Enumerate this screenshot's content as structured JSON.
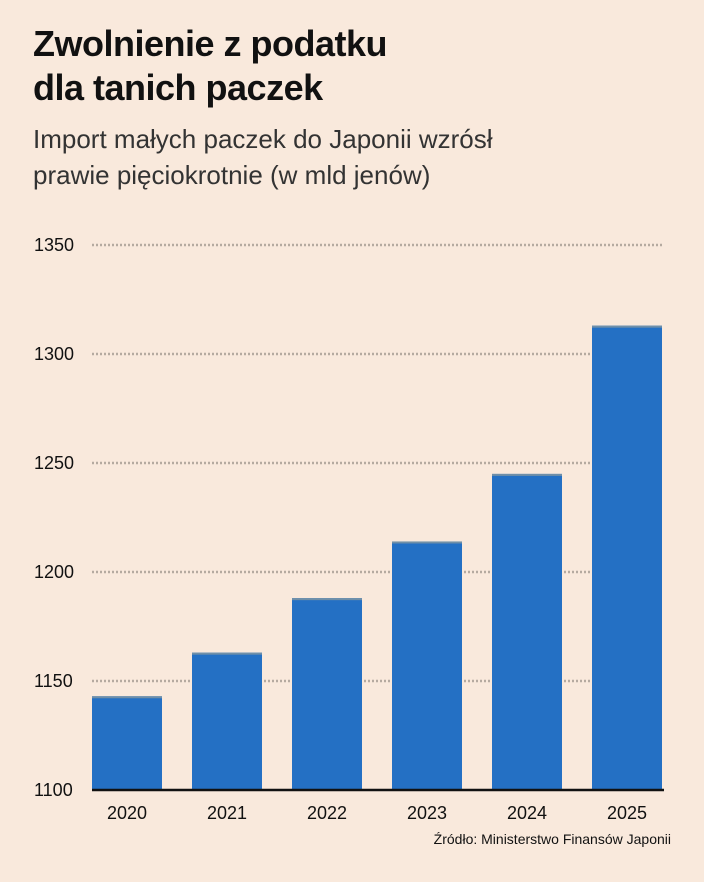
{
  "header": {
    "title_line1": "Zwolnienie z podatku",
    "title_line2": "dla tanich paczek",
    "subtitle_line1": "Import małych paczek do Japonii wzrósł",
    "subtitle_line2": "prawie pięciokrotnie (w mld jenów)"
  },
  "source": "Źródło: Ministerstwo Finansów Japonii",
  "colors": {
    "background": "#f9e9dc",
    "bar": "#2470c4",
    "bar_top": "#6f8fa8",
    "grid": "#b5aaa0",
    "axis": "#111111"
  },
  "chart_data": {
    "type": "bar",
    "title": "Zwolnienie z podatku dla tanich paczek",
    "subtitle": "Import małych paczek do Japonii wzrósł prawie pięciokrotnie (w mld jenów)",
    "xlabel": "",
    "ylabel": "",
    "categories": [
      "2020",
      "2021",
      "2022",
      "2023",
      "2024",
      "2025"
    ],
    "values": [
      1143,
      1163,
      1188,
      1214,
      1245,
      1313
    ],
    "ylim": [
      1100,
      1350
    ],
    "yticks": [
      1100,
      1150,
      1200,
      1250,
      1300,
      1350
    ],
    "ytick_labels": [
      "1100",
      "1150",
      "1200",
      "1250",
      "1300",
      "1350"
    ],
    "grid": "horizontal, dotted",
    "legend": "none"
  }
}
